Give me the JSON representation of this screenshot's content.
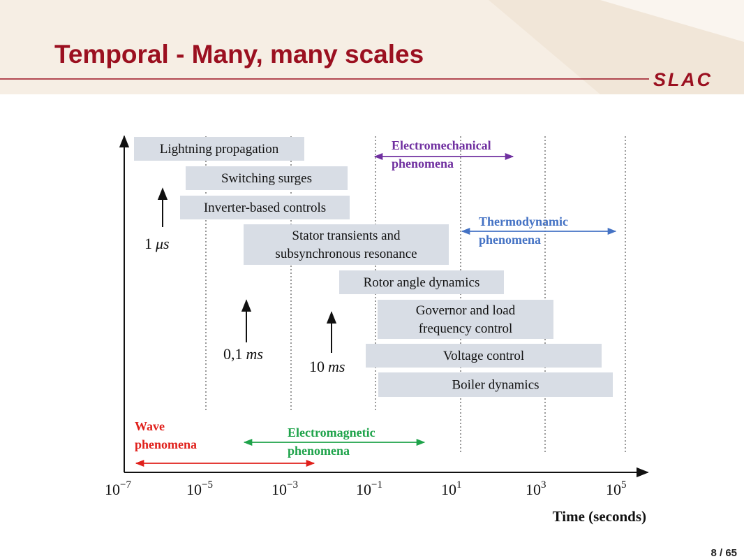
{
  "header": {
    "title": "Temporal - Many, many scales",
    "logo": "SLAC"
  },
  "diagram": {
    "bars": [
      {
        "lines": [
          "Lightning propagation"
        ]
      },
      {
        "lines": [
          "Switching surges"
        ]
      },
      {
        "lines": [
          "Inverter-based controls"
        ]
      },
      {
        "lines": [
          "Stator transients and",
          "subsynchronous resonance"
        ]
      },
      {
        "lines": [
          "Rotor angle dynamics"
        ]
      },
      {
        "lines": [
          "Governor and load",
          "frequency control"
        ]
      },
      {
        "lines": [
          "Voltage control"
        ]
      },
      {
        "lines": [
          "Boiler dynamics"
        ]
      }
    ],
    "ticks": [
      {
        "base": "10",
        "exponent": "−7"
      },
      {
        "base": "10",
        "exponent": "−5"
      },
      {
        "base": "10",
        "exponent": "−3"
      },
      {
        "base": "10",
        "exponent": "−1"
      },
      {
        "base": "10",
        "exponent": "1"
      },
      {
        "base": "10",
        "exponent": "3"
      },
      {
        "base": "10",
        "exponent": "5"
      }
    ],
    "axis_label": "Time (seconds)",
    "markers": [
      {
        "number": "1",
        "unit": "μs"
      },
      {
        "number": "0,1",
        "unit": "ms"
      },
      {
        "number": "10",
        "unit": "ms"
      }
    ],
    "phenomena": [
      {
        "lines": [
          "Electromechanical",
          "phenomena"
        ]
      },
      {
        "lines": [
          "Thermodynamic",
          "phenomena"
        ]
      },
      {
        "lines": [
          "Wave",
          "phenomena"
        ]
      },
      {
        "lines": [
          "Electromagnetic",
          "phenomena"
        ]
      }
    ]
  },
  "footer": {
    "page": "8 / 65"
  }
}
